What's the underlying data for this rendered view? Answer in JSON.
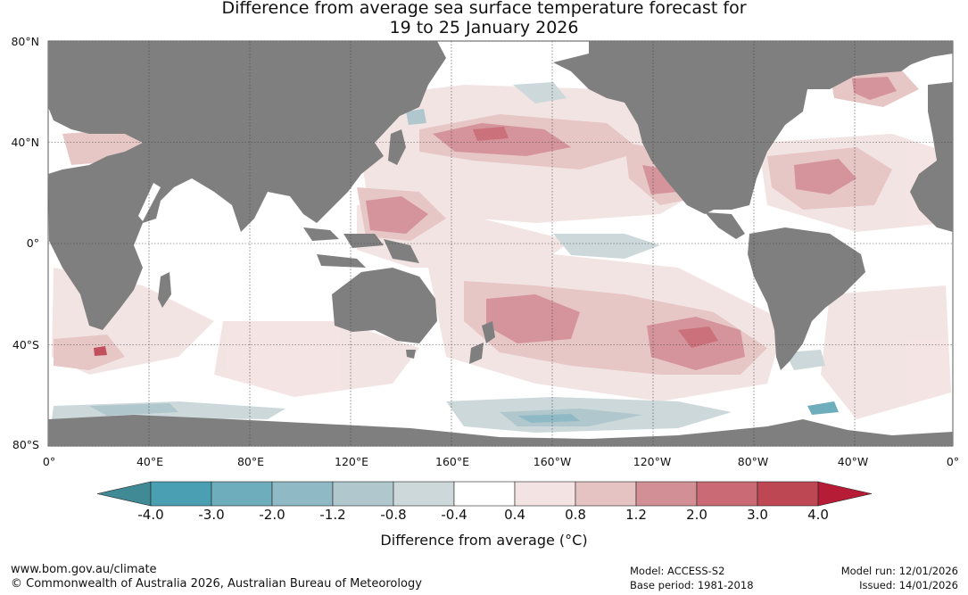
{
  "title": {
    "line1": "Difference from average sea surface temperature forecast for",
    "line2": "19 to 25 January 2026"
  },
  "axes": {
    "lat_labels": [
      "80°N",
      "40°N",
      "0°",
      "40°S",
      "80°S"
    ],
    "lon_labels": [
      "0°",
      "40°E",
      "80°E",
      "120°E",
      "160°E",
      "160°W",
      "120°W",
      "80°W",
      "40°W",
      "0°"
    ]
  },
  "colorbar": {
    "ticks": [
      "-4.0",
      "-3.0",
      "-2.0",
      "-1.2",
      "-0.8",
      "-0.4",
      "0.4",
      "0.8",
      "1.2",
      "2.0",
      "3.0",
      "4.0"
    ],
    "colors": [
      "#4a9fb3",
      "#6eadbb",
      "#8fbac5",
      "#b0c8cd",
      "#cdd8da",
      "#ffffff",
      "#f3e3e3",
      "#e6c3c3",
      "#d38f96",
      "#c96a74",
      "#be4754"
    ],
    "under_color": "#3f8a95",
    "over_color": "#b71c37",
    "title": "Difference from average (°C)"
  },
  "land_color": "#7f7f7f",
  "footer": {
    "url": "www.bom.gov.au/climate",
    "copyright": "© Commonwealth of Australia 2026, Australian Bureau of Meteorology",
    "model": "Model: ACCESS-S2",
    "base_period": "Base period: 1981-2018",
    "model_run": "Model run: 12/01/2026",
    "issued": "Issued: 14/01/2026"
  }
}
